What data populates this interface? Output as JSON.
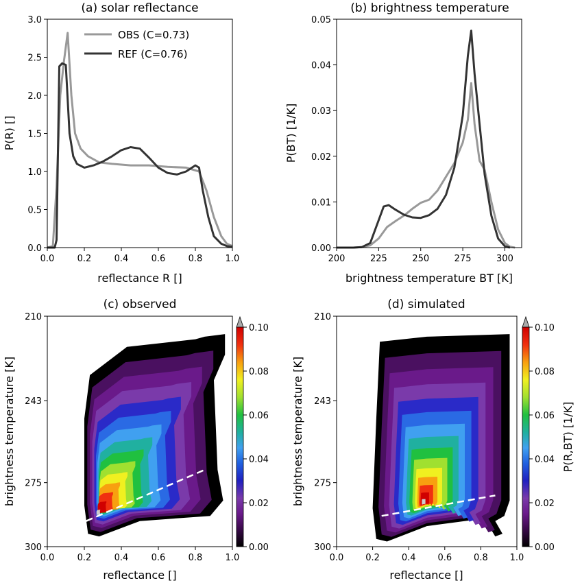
{
  "chart_data": [
    {
      "id": "a",
      "type": "line",
      "title": "(a) solar reflectance",
      "xlabel": "reflectance R []",
      "ylabel": "P(R) []",
      "xlim": [
        0,
        1
      ],
      "ylim": [
        0,
        3
      ],
      "xticks": [
        "0.0",
        "0.2",
        "0.4",
        "0.6",
        "0.8",
        "1.0"
      ],
      "yticks": [
        "0.0",
        "0.5",
        "1.0",
        "1.5",
        "2.0",
        "2.5",
        "3.0"
      ],
      "legend": "top-right",
      "series": [
        {
          "name": "OBS (C=0.73)",
          "color": "#999999",
          "x": [
            0.0,
            0.03,
            0.05,
            0.07,
            0.09,
            0.11,
            0.13,
            0.15,
            0.18,
            0.22,
            0.28,
            0.35,
            0.45,
            0.55,
            0.65,
            0.75,
            0.82,
            0.86,
            0.9,
            0.94,
            0.97,
            1.0
          ],
          "y": [
            0.0,
            0.02,
            0.8,
            2.0,
            2.45,
            2.82,
            2.0,
            1.5,
            1.3,
            1.2,
            1.12,
            1.1,
            1.08,
            1.08,
            1.06,
            1.05,
            1.0,
            0.75,
            0.4,
            0.15,
            0.05,
            0.02
          ]
        },
        {
          "name": "REF (C=0.76)",
          "color": "#333333",
          "x": [
            0.0,
            0.04,
            0.05,
            0.065,
            0.08,
            0.1,
            0.12,
            0.14,
            0.16,
            0.2,
            0.25,
            0.3,
            0.35,
            0.4,
            0.45,
            0.5,
            0.55,
            0.6,
            0.65,
            0.7,
            0.75,
            0.8,
            0.82,
            0.84,
            0.87,
            0.9,
            0.94,
            0.97,
            1.0
          ],
          "y": [
            0.0,
            0.0,
            0.1,
            2.38,
            2.42,
            2.4,
            1.5,
            1.2,
            1.1,
            1.05,
            1.08,
            1.13,
            1.2,
            1.28,
            1.32,
            1.3,
            1.18,
            1.05,
            0.98,
            0.96,
            1.0,
            1.08,
            1.05,
            0.75,
            0.4,
            0.15,
            0.05,
            0.02,
            0.01
          ]
        }
      ]
    },
    {
      "id": "b",
      "type": "line",
      "title": "(b) brightness temperature",
      "xlabel": "brightness temperature BT [K]",
      "ylabel": "P(BT) [1/K]",
      "xlim": [
        200,
        310
      ],
      "ylim": [
        0,
        0.05
      ],
      "xticks": [
        "200",
        "225",
        "250",
        "275",
        "300"
      ],
      "yticks": [
        "0.00",
        "0.01",
        "0.02",
        "0.03",
        "0.04",
        "0.05"
      ],
      "series": [
        {
          "name": "OBS",
          "color": "#999999",
          "x": [
            200,
            210,
            215,
            220,
            225,
            230,
            235,
            240,
            245,
            250,
            255,
            260,
            265,
            270,
            275,
            278,
            280,
            282,
            285,
            288,
            292,
            296,
            300,
            303,
            306
          ],
          "y": [
            0.0,
            0.0,
            0.0001,
            0.0005,
            0.002,
            0.0045,
            0.0058,
            0.007,
            0.0085,
            0.0098,
            0.0105,
            0.0125,
            0.0155,
            0.0185,
            0.023,
            0.028,
            0.036,
            0.027,
            0.019,
            0.017,
            0.01,
            0.004,
            0.001,
            0.0002,
            0.0
          ]
        },
        {
          "name": "REF",
          "color": "#333333",
          "x": [
            200,
            210,
            215,
            220,
            225,
            228,
            231,
            235,
            240,
            245,
            250,
            255,
            260,
            265,
            270,
            275,
            278,
            280,
            282,
            285,
            288,
            292,
            296,
            300,
            303
          ],
          "y": [
            0.0,
            0.0,
            0.0001,
            0.001,
            0.006,
            0.009,
            0.0093,
            0.0083,
            0.0072,
            0.0066,
            0.0065,
            0.0071,
            0.0085,
            0.0115,
            0.0175,
            0.029,
            0.042,
            0.0475,
            0.038,
            0.027,
            0.016,
            0.007,
            0.002,
            0.0003,
            0.0
          ]
        }
      ]
    },
    {
      "id": "c",
      "type": "heatmap",
      "title": "(c) observed",
      "xlabel": "reflectance []",
      "ylabel": "brightness temperature [K]",
      "xlim": [
        0,
        1
      ],
      "ylim": [
        300,
        210
      ],
      "xticks": [
        "0.0",
        "0.2",
        "0.4",
        "0.6",
        "0.8",
        "1.0"
      ],
      "yticks": [
        "210",
        "243",
        "275",
        "300"
      ],
      "colorbar": {
        "label": "",
        "range": [
          0,
          0.1
        ],
        "ticks": [
          "0.00",
          "0.02",
          "0.04",
          "0.06",
          "0.08",
          "0.10"
        ],
        "extend": "max"
      },
      "peak": {
        "x": 0.24,
        "y": 290
      },
      "ridge": {
        "from": {
          "x": 0.21,
          "y": 290
        },
        "to": {
          "x": 0.85,
          "y": 270
        }
      },
      "hull": [
        [
          0.22,
          295
        ],
        [
          0.2,
          284
        ],
        [
          0.2,
          250
        ],
        [
          0.23,
          233
        ],
        [
          0.43,
          222
        ],
        [
          0.8,
          219
        ],
        [
          0.85,
          218
        ],
        [
          0.96,
          217
        ],
        [
          0.96,
          225
        ],
        [
          0.9,
          235
        ],
        [
          0.92,
          270
        ],
        [
          0.95,
          282
        ],
        [
          0.88,
          288
        ],
        [
          0.5,
          290
        ],
        [
          0.28,
          296
        ]
      ]
    },
    {
      "id": "d",
      "type": "heatmap",
      "title": "(d) simulated",
      "xlabel": "reflectance []",
      "ylabel": "brightness temperature [K]",
      "xlim": [
        0,
        1
      ],
      "ylim": [
        300,
        210
      ],
      "xticks": [
        "0.0",
        "0.2",
        "0.4",
        "0.6",
        "0.8",
        "1.0"
      ],
      "yticks": [
        "210",
        "243",
        "275",
        "300"
      ],
      "colorbar": {
        "label": "P(R,BT) [1/K]",
        "range": [
          0,
          0.1
        ],
        "ticks": [
          "0.00",
          "0.02",
          "0.04",
          "0.06",
          "0.08",
          "0.10"
        ],
        "extend": "max"
      },
      "peak": {
        "x": 0.47,
        "y": 284
      },
      "ridge": {
        "from": {
          "x": 0.25,
          "y": 288
        },
        "to": {
          "x": 0.88,
          "y": 280
        }
      },
      "hull": [
        [
          0.22,
          297
        ],
        [
          0.2,
          285
        ],
        [
          0.22,
          250
        ],
        [
          0.24,
          220
        ],
        [
          0.5,
          218
        ],
        [
          0.96,
          217
        ],
        [
          0.96,
          282
        ],
        [
          0.93,
          288
        ],
        [
          0.88,
          290
        ],
        [
          0.92,
          295
        ],
        [
          0.88,
          296
        ],
        [
          0.82,
          289
        ],
        [
          0.5,
          292
        ],
        [
          0.28,
          298
        ]
      ]
    }
  ]
}
